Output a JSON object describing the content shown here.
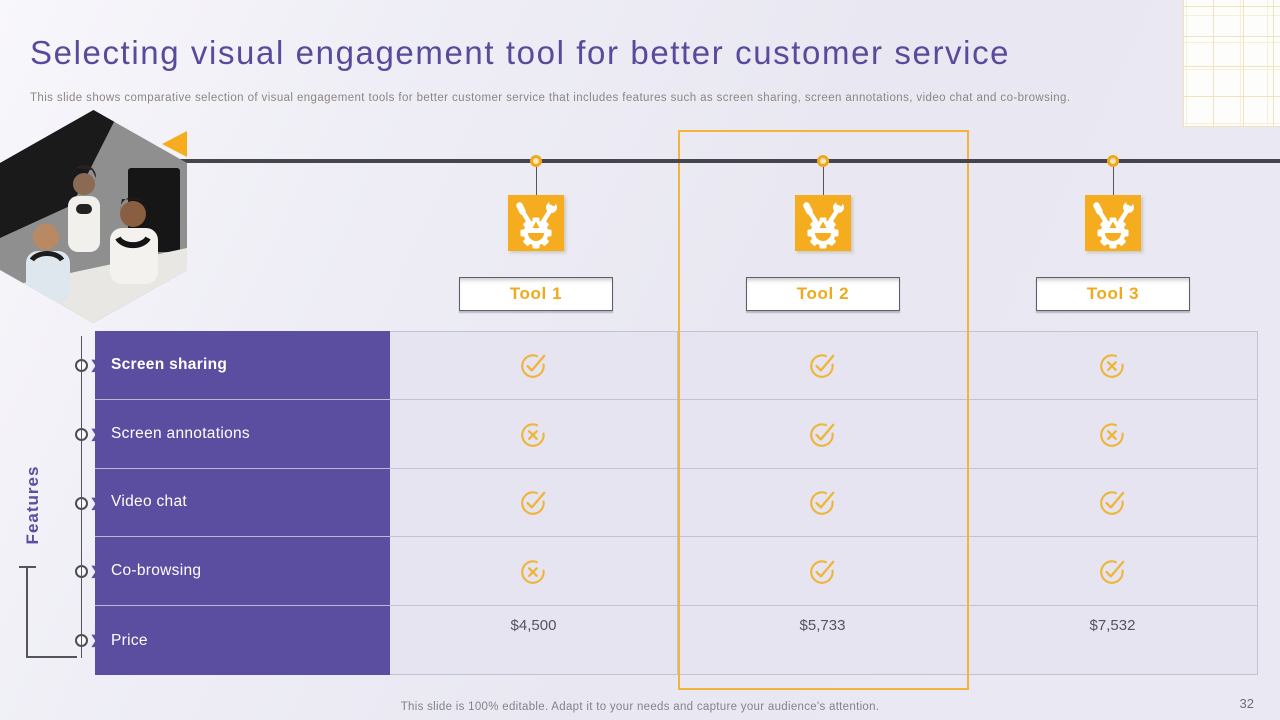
{
  "slide": {
    "title": "Selecting visual engagement tool for better customer service",
    "subtitle": "This slide shows comparative selection of visual engagement tools for better customer service that includes features such as screen sharing, screen annotations, video chat and co-browsing.",
    "footer": "This slide is 100% editable. Adapt it to your needs and capture your audience's attention.",
    "page_number": "32"
  },
  "features_label": "Features",
  "tools": [
    {
      "name": "Tool 1"
    },
    {
      "name": "Tool 2"
    },
    {
      "name": "Tool 3"
    }
  ],
  "highlighted_tool": "Tool 2",
  "table": {
    "rows": [
      {
        "label": "Screen sharing",
        "bold": true,
        "values": [
          "check",
          "check",
          "cross"
        ]
      },
      {
        "label": "Screen annotations",
        "bold": false,
        "values": [
          "cross",
          "check",
          "cross"
        ]
      },
      {
        "label": "Video chat",
        "bold": false,
        "values": [
          "check",
          "check",
          "check"
        ]
      },
      {
        "label": "Co-browsing",
        "bold": false,
        "values": [
          "cross",
          "check",
          "check"
        ]
      },
      {
        "label": "Price",
        "bold": false,
        "values": [
          "$4,500",
          "$5,733",
          "$7,532"
        ]
      }
    ]
  },
  "icons": {
    "tool": "gear-with-tools-icon",
    "check": "check-circle-icon",
    "cross": "cross-circle-icon",
    "marker": "circle-chevron-marker"
  },
  "colors": {
    "accent_purple": "#5B4D9F",
    "accent_yellow": "#F5AD1F",
    "icon_yellow": "#EFB53B",
    "timeline_dark": "#46454D",
    "title_purple": "#5B4A9B"
  }
}
